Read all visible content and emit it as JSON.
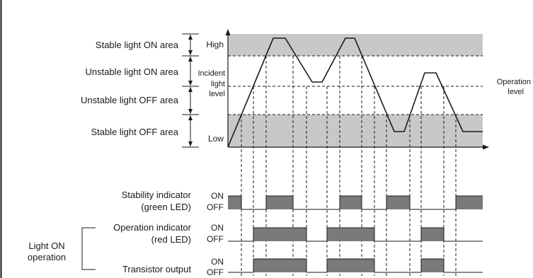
{
  "colors": {
    "band": "#c8c8c8",
    "signal": "#7a7a7a",
    "line": "#1a1a1a"
  },
  "areas": {
    "stable_on": "Stable light ON area",
    "unstable_on": "Unstable light ON area",
    "unstable_off": "Unstable light OFF area",
    "stable_off": "Stable light OFF area"
  },
  "axis": {
    "high": "High",
    "low": "Low",
    "incident_line1": "Incident",
    "incident_line2": "light",
    "incident_line3": "level",
    "operation_line1": "Operation",
    "operation_line2": "level"
  },
  "stability": {
    "label_line1": "Stability indicator",
    "label_line2": "(green LED)",
    "on": "ON",
    "off": "OFF"
  },
  "operation": {
    "label_line1": "Operation indicator",
    "label_line2": "(red LED)",
    "on": "ON",
    "off": "OFF"
  },
  "transistor": {
    "label": "Transistor output",
    "on": "ON",
    "off": "OFF"
  },
  "group": {
    "line1": "Light ON",
    "line2": "operation"
  }
}
